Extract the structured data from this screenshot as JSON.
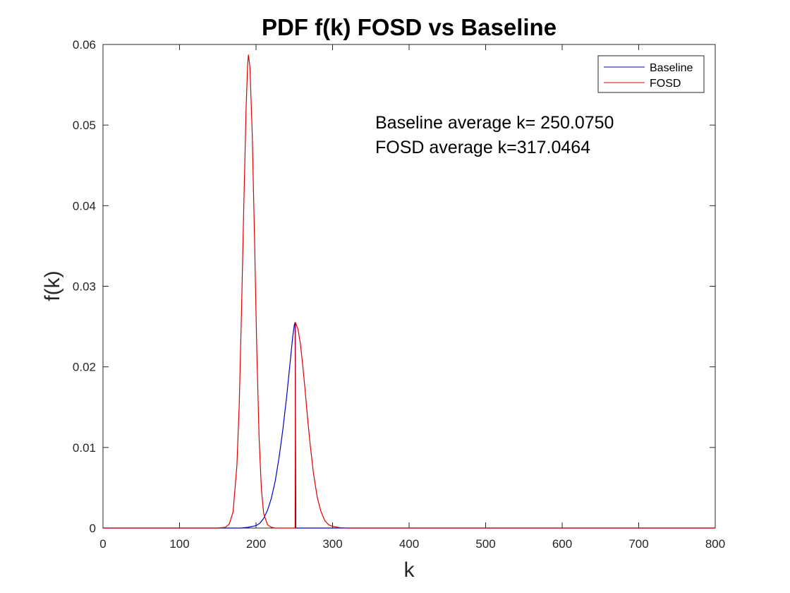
{
  "chart_data": {
    "type": "line",
    "title": "PDF f(k) FOSD vs Baseline",
    "xlabel": "k",
    "ylabel": "f(k)",
    "xlim": [
      0,
      800
    ],
    "ylim": [
      0,
      0.06
    ],
    "xticks": [
      0,
      100,
      200,
      300,
      400,
      500,
      600,
      700,
      800
    ],
    "xtick_labels": [
      "0",
      "100",
      "200",
      "300",
      "400",
      "500",
      "600",
      "700",
      "800"
    ],
    "yticks": [
      0,
      0.01,
      0.02,
      0.03,
      0.04,
      0.05,
      0.06
    ],
    "ytick_labels": [
      "0",
      "0.01",
      "0.02",
      "0.03",
      "0.04",
      "0.05",
      "0.06"
    ],
    "grid": false,
    "legend_position": "top-right",
    "series": [
      {
        "name": "Baseline",
        "color": "#0000cc",
        "x": [
          0,
          160,
          180,
          190,
          200,
          205,
          210,
          215,
          220,
          225,
          230,
          235,
          240,
          245,
          248,
          250,
          251,
          252,
          260,
          300,
          400,
          800
        ],
        "y": [
          0,
          0,
          0,
          0.0001,
          0.0003,
          0.0006,
          0.0012,
          0.0022,
          0.0037,
          0.0058,
          0.0087,
          0.0122,
          0.0163,
          0.021,
          0.0238,
          0.0252,
          0.0255,
          0,
          0,
          0,
          0,
          0
        ]
      },
      {
        "name": "FOSD",
        "color": "#dd0000",
        "x": [
          0,
          150,
          160,
          165,
          170,
          175,
          178,
          181,
          184,
          187,
          189,
          190,
          192,
          195,
          198,
          201,
          204,
          207,
          210,
          215,
          220,
          225,
          240,
          250,
          251,
          251.5,
          252,
          255,
          258,
          261,
          264,
          267,
          270,
          275,
          280,
          285,
          290,
          295,
          300,
          310,
          320,
          400,
          800
        ],
        "y": [
          0,
          0,
          0.0001,
          0.0005,
          0.002,
          0.0078,
          0.0152,
          0.0268,
          0.04,
          0.052,
          0.0575,
          0.0587,
          0.0572,
          0.049,
          0.036,
          0.022,
          0.0112,
          0.0048,
          0.0018,
          0.0004,
          0.0001,
          0,
          0,
          0,
          0,
          0.0255,
          0.0254,
          0.0246,
          0.0228,
          0.0202,
          0.0172,
          0.014,
          0.011,
          0.0068,
          0.0038,
          0.002,
          0.0009,
          0.0004,
          0.0002,
          5e-05,
          0,
          0,
          0
        ]
      }
    ],
    "annotations": [
      "Baseline average k= 250.0750",
      "FOSD average k=317.0464"
    ]
  }
}
